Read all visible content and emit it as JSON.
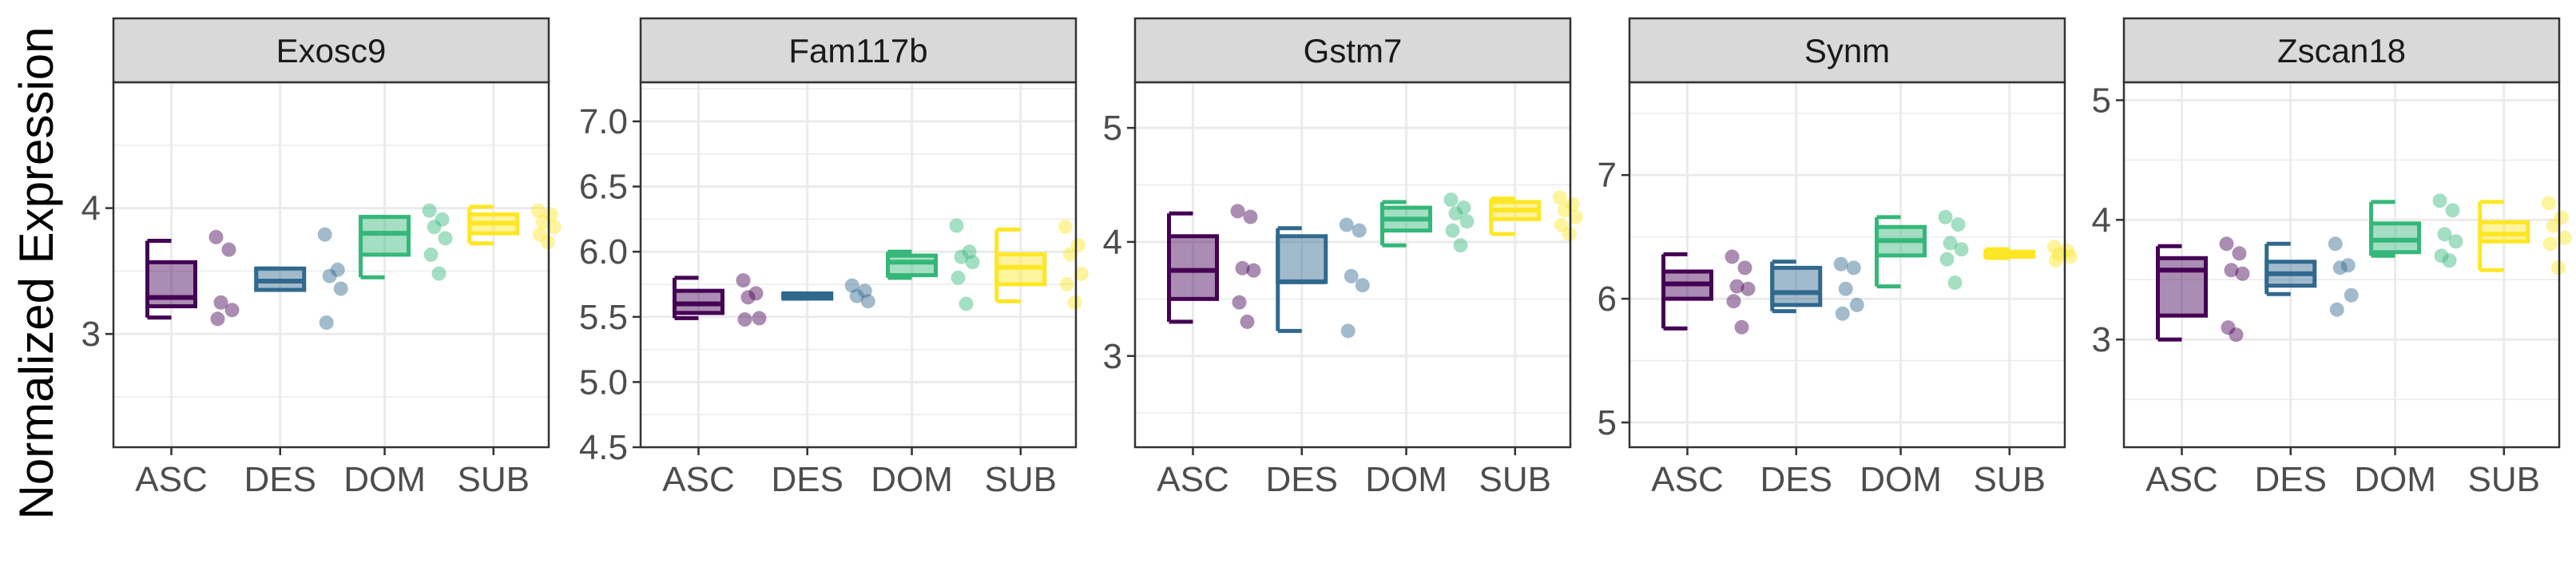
{
  "ylabel": "Normalized Expression",
  "colors": {
    "ASC": "#440154",
    "DES": "#31688E",
    "DOM": "#35B779",
    "SUB": "#FDE725"
  },
  "panel_strip_bg": "#D9D9D9",
  "grid_color": "#EBEBEB",
  "chart_data": [
    {
      "type": "boxplot",
      "title": "Exosc9",
      "categories": [
        "ASC",
        "DES",
        "DOM",
        "SUB"
      ],
      "ylim": [
        2.1,
        5.0
      ],
      "yticks": [
        3,
        4
      ],
      "grid": true,
      "series": [
        {
          "category": "ASC",
          "whisker_low": 3.13,
          "q1": 3.22,
          "median": 3.29,
          "q3": 3.57,
          "whisker_high": 3.74,
          "points": [
            3.77,
            3.67,
            3.25,
            3.19,
            3.12
          ]
        },
        {
          "category": "DES",
          "whisker_low": 3.35,
          "q1": 3.35,
          "median": 3.42,
          "q3": 3.52,
          "whisker_high": 3.52,
          "points": [
            3.79,
            3.51,
            3.46,
            3.36,
            3.09
          ]
        },
        {
          "category": "DOM",
          "whisker_low": 3.45,
          "q1": 3.63,
          "median": 3.8,
          "q3": 3.93,
          "whisker_high": 3.93,
          "points": [
            3.98,
            3.91,
            3.85,
            3.76,
            3.63,
            3.48
          ]
        },
        {
          "category": "SUB",
          "whisker_low": 3.72,
          "q1": 3.8,
          "median": 3.88,
          "q3": 3.95,
          "whisker_high": 4.01,
          "points": [
            3.98,
            3.95,
            3.89,
            3.85,
            3.79,
            3.73
          ]
        }
      ]
    },
    {
      "type": "boxplot",
      "title": "Fam117b",
      "categories": [
        "ASC",
        "DES",
        "DOM",
        "SUB"
      ],
      "ylim": [
        4.5,
        7.3
      ],
      "yticks": [
        4.5,
        5.0,
        5.5,
        6.0,
        6.5,
        7.0
      ],
      "grid": true,
      "series": [
        {
          "category": "ASC",
          "whisker_low": 5.49,
          "q1": 5.53,
          "median": 5.6,
          "q3": 5.7,
          "whisker_high": 5.8,
          "points": [
            5.78,
            5.68,
            5.65,
            5.49,
            5.48
          ]
        },
        {
          "category": "DES",
          "whisker_low": 5.64,
          "q1": 5.64,
          "median": 5.66,
          "q3": 5.68,
          "whisker_high": 5.68,
          "points": [
            5.74,
            5.7,
            5.66,
            5.62
          ]
        },
        {
          "category": "DOM",
          "whisker_low": 5.8,
          "q1": 5.82,
          "median": 5.92,
          "q3": 5.97,
          "whisker_high": 6.0,
          "points": [
            6.2,
            6.0,
            5.96,
            5.92,
            5.8,
            5.6
          ]
        },
        {
          "category": "SUB",
          "whisker_low": 5.62,
          "q1": 5.75,
          "median": 5.88,
          "q3": 5.98,
          "whisker_high": 6.17,
          "points": [
            6.19,
            6.05,
            5.98,
            5.83,
            5.75,
            5.61
          ]
        }
      ]
    },
    {
      "type": "boxplot",
      "title": "Gstm7",
      "categories": [
        "ASC",
        "DES",
        "DOM",
        "SUB"
      ],
      "ylim": [
        2.2,
        5.4
      ],
      "yticks": [
        3,
        4,
        5
      ],
      "grid": true,
      "series": [
        {
          "category": "ASC",
          "whisker_low": 3.3,
          "q1": 3.5,
          "median": 3.75,
          "q3": 4.05,
          "whisker_high": 4.25,
          "points": [
            4.27,
            4.22,
            3.77,
            3.75,
            3.47,
            3.3
          ]
        },
        {
          "category": "DES",
          "whisker_low": 3.22,
          "q1": 3.65,
          "median": 3.65,
          "q3": 4.05,
          "whisker_high": 4.12,
          "points": [
            4.15,
            4.1,
            3.7,
            3.62,
            3.22
          ]
        },
        {
          "category": "DOM",
          "whisker_low": 3.97,
          "q1": 4.1,
          "median": 4.2,
          "q3": 4.3,
          "whisker_high": 4.35,
          "points": [
            4.37,
            4.3,
            4.25,
            4.18,
            4.1,
            3.97
          ]
        },
        {
          "category": "SUB",
          "whisker_low": 4.07,
          "q1": 4.2,
          "median": 4.28,
          "q3": 4.35,
          "whisker_high": 4.38,
          "points": [
            4.39,
            4.33,
            4.28,
            4.22,
            4.15,
            4.07
          ]
        }
      ]
    },
    {
      "type": "boxplot",
      "title": "Synm",
      "categories": [
        "ASC",
        "DES",
        "DOM",
        "SUB"
      ],
      "ylim": [
        4.8,
        7.75
      ],
      "yticks": [
        5,
        6,
        7
      ],
      "grid": true,
      "series": [
        {
          "category": "ASC",
          "whisker_low": 5.76,
          "q1": 6.0,
          "median": 6.12,
          "q3": 6.22,
          "whisker_high": 6.36,
          "points": [
            6.34,
            6.25,
            6.1,
            6.08,
            5.98,
            5.77
          ]
        },
        {
          "category": "DES",
          "whisker_low": 5.9,
          "q1": 5.95,
          "median": 6.05,
          "q3": 6.25,
          "whisker_high": 6.3,
          "points": [
            6.28,
            6.25,
            6.08,
            5.95,
            5.88
          ]
        },
        {
          "category": "DOM",
          "whisker_low": 6.1,
          "q1": 6.35,
          "median": 6.47,
          "q3": 6.58,
          "whisker_high": 6.66,
          "points": [
            6.66,
            6.6,
            6.45,
            6.4,
            6.32,
            6.13
          ]
        },
        {
          "category": "SUB",
          "whisker_low": 6.33,
          "q1": 6.34,
          "median": 6.36,
          "q3": 6.38,
          "whisker_high": 6.4,
          "points": [
            6.42,
            6.39,
            6.36,
            6.34,
            6.31
          ]
        }
      ]
    },
    {
      "type": "boxplot",
      "title": "Zscan18",
      "categories": [
        "ASC",
        "DES",
        "DOM",
        "SUB"
      ],
      "ylim": [
        2.1,
        5.15
      ],
      "yticks": [
        3,
        4,
        5
      ],
      "grid": true,
      "series": [
        {
          "category": "ASC",
          "whisker_low": 3.0,
          "q1": 3.2,
          "median": 3.58,
          "q3": 3.68,
          "whisker_high": 3.78,
          "points": [
            3.8,
            3.72,
            3.58,
            3.55,
            3.1,
            3.04
          ]
        },
        {
          "category": "DES",
          "whisker_low": 3.38,
          "q1": 3.45,
          "median": 3.55,
          "q3": 3.65,
          "whisker_high": 3.8,
          "points": [
            3.8,
            3.62,
            3.6,
            3.37,
            3.25
          ]
        },
        {
          "category": "DOM",
          "whisker_low": 3.7,
          "q1": 3.73,
          "median": 3.83,
          "q3": 3.97,
          "whisker_high": 4.15,
          "points": [
            4.16,
            4.08,
            3.88,
            3.82,
            3.7,
            3.66
          ]
        },
        {
          "category": "SUB",
          "whisker_low": 3.58,
          "q1": 3.82,
          "median": 3.88,
          "q3": 3.98,
          "whisker_high": 4.15,
          "points": [
            4.14,
            4.02,
            3.95,
            3.85,
            3.8,
            3.6
          ]
        }
      ]
    }
  ]
}
